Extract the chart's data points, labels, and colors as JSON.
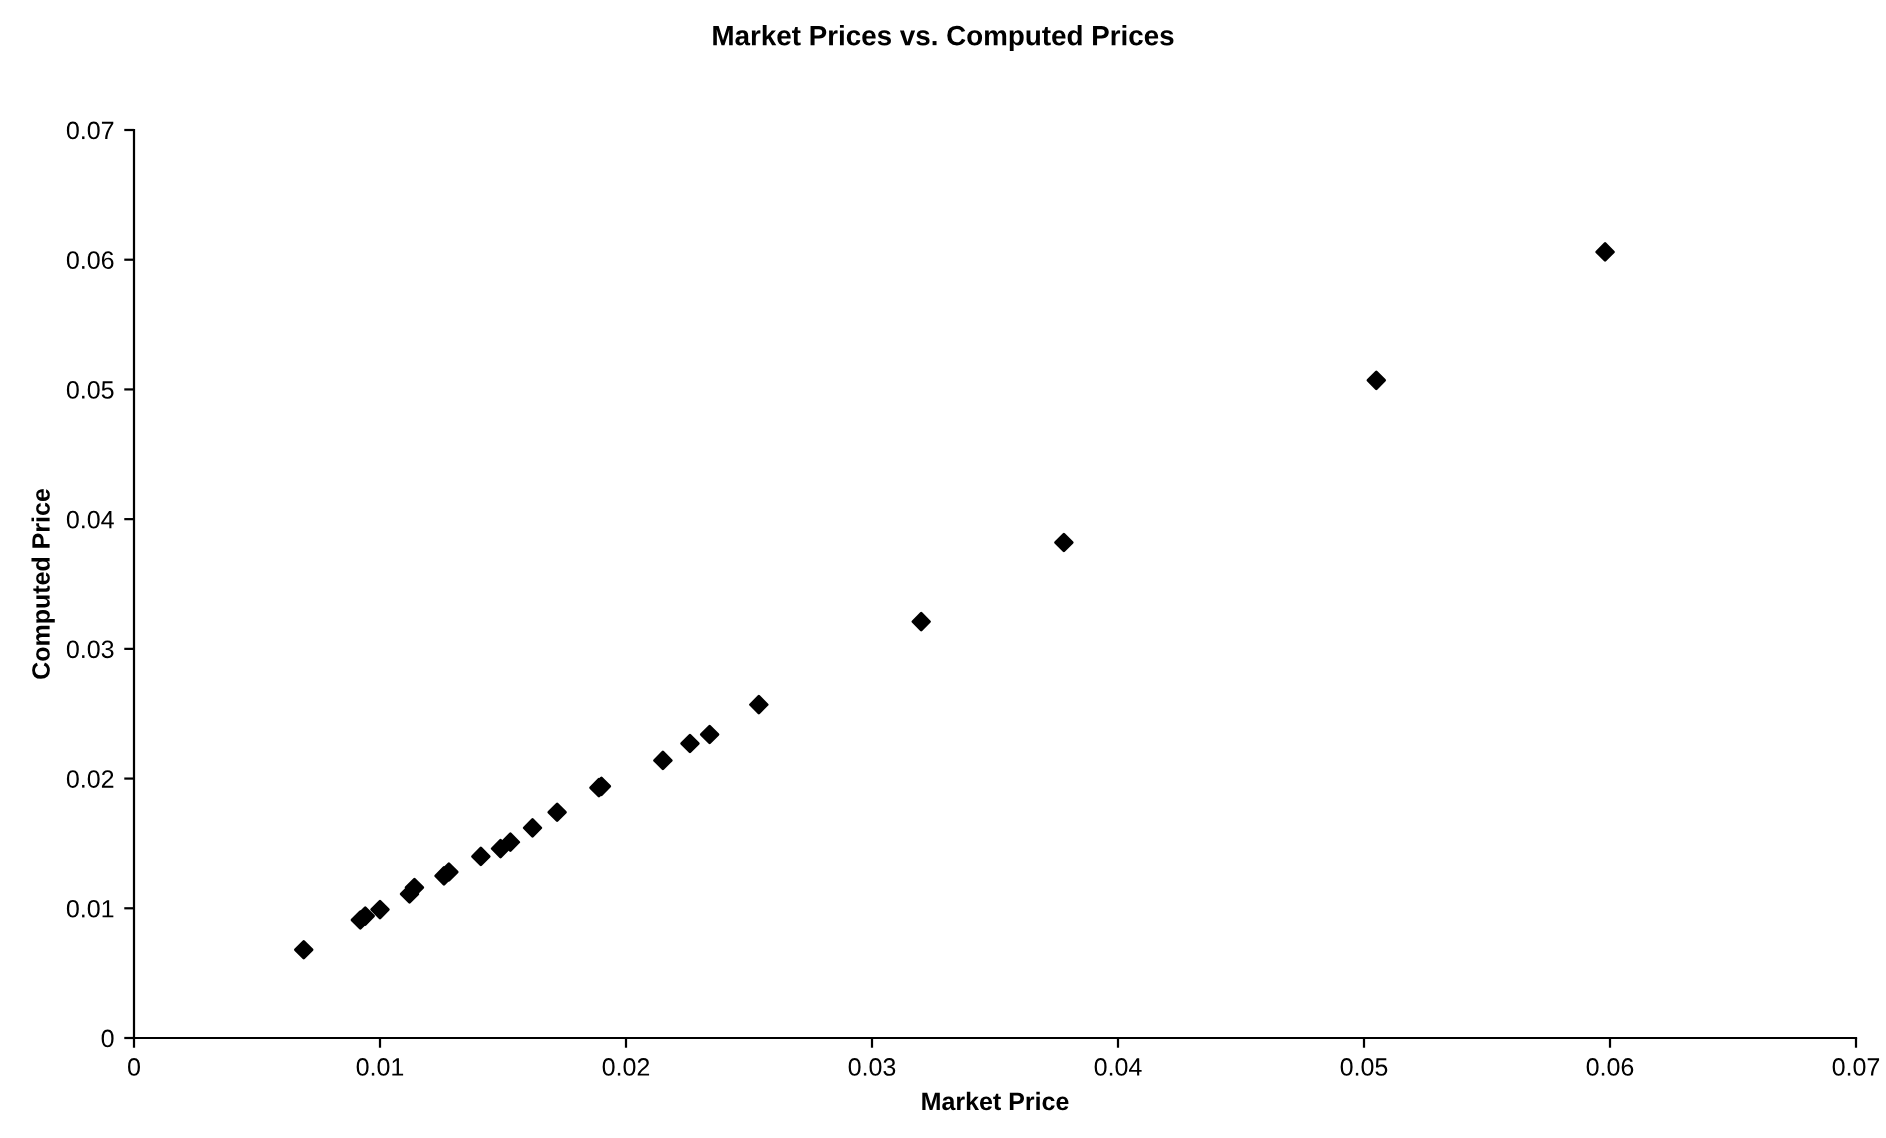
{
  "chart_data": {
    "type": "scatter",
    "title": "Market Prices vs. Computed Prices",
    "xlabel": "Market Price",
    "ylabel": "Computed Price",
    "x": [
      0.0069,
      0.0092,
      0.0094,
      0.01,
      0.0112,
      0.0114,
      0.0126,
      0.0128,
      0.0141,
      0.0149,
      0.0153,
      0.0162,
      0.0172,
      0.0189,
      0.019,
      0.0215,
      0.0226,
      0.0234,
      0.0254,
      0.032,
      0.0378,
      0.0505,
      0.0598
    ],
    "series": [
      {
        "color": "#000000",
        "values": [
          0.0068,
          0.0091,
          0.0094,
          0.0099,
          0.0111,
          0.0116,
          0.0125,
          0.0128,
          0.014,
          0.0146,
          0.0151,
          0.0162,
          0.0174,
          0.0193,
          0.0194,
          0.0214,
          0.0227,
          0.0234,
          0.0257,
          0.0321,
          0.0382,
          0.0507,
          0.0606
        ]
      }
    ],
    "xlim": [
      0,
      0.07
    ],
    "ylim": [
      0,
      0.07
    ],
    "xticks": [
      0,
      0.01,
      0.02,
      0.03,
      0.04,
      0.05,
      0.06,
      0.07
    ],
    "yticks": [
      0,
      0.01,
      0.02,
      0.03,
      0.04,
      0.05,
      0.06,
      0.07
    ],
    "marker": "diamond",
    "grid": false,
    "legend": false
  }
}
